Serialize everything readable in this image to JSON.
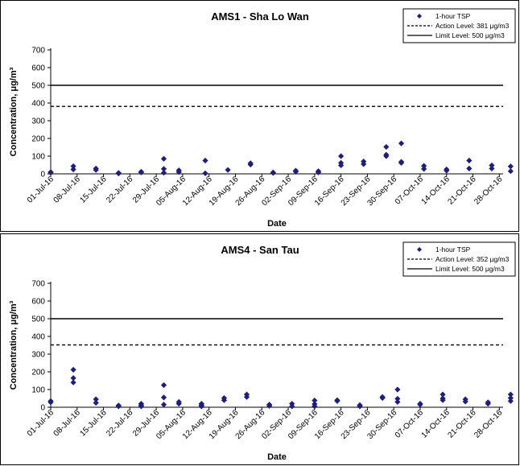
{
  "chart_data": [
    {
      "type": "scatter",
      "title": "AMS1 - Sha Lo Wan",
      "xlabel": "Date",
      "ylabel": "Concentration, μg/m³",
      "ylim": [
        0,
        700
      ],
      "yticks": [
        0,
        100,
        200,
        300,
        400,
        500,
        600,
        700
      ],
      "xticks": [
        "01-Jul-16",
        "08-Jul-16",
        "15-Jul-16",
        "22-Jul-16",
        "29-Jul-16",
        "05-Aug-16",
        "12-Aug-16",
        "19-Aug-16",
        "26-Aug-16",
        "02-Sep-16",
        "09-Sep-16",
        "16-Sep-16",
        "23-Sep-16",
        "30-Sep-16",
        "07-Oct-16",
        "14-Oct-16",
        "21-Oct-16",
        "28-Oct-16"
      ],
      "grid": false,
      "legend_position": "top-right",
      "legend": [
        "1-hour TSP",
        "Action Level: 381 μg/m3",
        "Limit Level: 500 μg/m3"
      ],
      "series": [
        {
          "name": "1-hour TSP",
          "marker": "diamond",
          "color": "#1f1f7a",
          "points": [
            {
              "date": "2016-07-01",
              "value": 10
            },
            {
              "date": "2016-07-01",
              "value": 6
            },
            {
              "date": "2016-07-07",
              "value": 43
            },
            {
              "date": "2016-07-07",
              "value": 25
            },
            {
              "date": "2016-07-13",
              "value": 30
            },
            {
              "date": "2016-07-13",
              "value": 22
            },
            {
              "date": "2016-07-19",
              "value": 5
            },
            {
              "date": "2016-07-19",
              "value": 2
            },
            {
              "date": "2016-07-25",
              "value": 12
            },
            {
              "date": "2016-07-25",
              "value": 8
            },
            {
              "date": "2016-07-31",
              "value": 85
            },
            {
              "date": "2016-07-31",
              "value": 28
            },
            {
              "date": "2016-07-31",
              "value": 6
            },
            {
              "date": "2016-08-04",
              "value": 20
            },
            {
              "date": "2016-08-04",
              "value": 10
            },
            {
              "date": "2016-08-11",
              "value": 75
            },
            {
              "date": "2016-08-11",
              "value": 3
            },
            {
              "date": "2016-08-17",
              "value": 22
            },
            {
              "date": "2016-08-23",
              "value": 60
            },
            {
              "date": "2016-08-23",
              "value": 52
            },
            {
              "date": "2016-08-29",
              "value": 8
            },
            {
              "date": "2016-08-29",
              "value": 5
            },
            {
              "date": "2016-09-04",
              "value": 18
            },
            {
              "date": "2016-09-04",
              "value": 12
            },
            {
              "date": "2016-09-10",
              "value": 15
            },
            {
              "date": "2016-09-10",
              "value": 8
            },
            {
              "date": "2016-09-16",
              "value": 100
            },
            {
              "date": "2016-09-16",
              "value": 62
            },
            {
              "date": "2016-09-16",
              "value": 48
            },
            {
              "date": "2016-09-22",
              "value": 70
            },
            {
              "date": "2016-09-22",
              "value": 55
            },
            {
              "date": "2016-09-28",
              "value": 152
            },
            {
              "date": "2016-09-28",
              "value": 108
            },
            {
              "date": "2016-09-28",
              "value": 100
            },
            {
              "date": "2016-10-02",
              "value": 172
            },
            {
              "date": "2016-10-02",
              "value": 68
            },
            {
              "date": "2016-10-02",
              "value": 62
            },
            {
              "date": "2016-10-08",
              "value": 45
            },
            {
              "date": "2016-10-08",
              "value": 28
            },
            {
              "date": "2016-10-14",
              "value": 25
            },
            {
              "date": "2016-10-14",
              "value": 18
            },
            {
              "date": "2016-10-20",
              "value": 75
            },
            {
              "date": "2016-10-20",
              "value": 30
            },
            {
              "date": "2016-10-26",
              "value": 48
            },
            {
              "date": "2016-10-26",
              "value": 30
            },
            {
              "date": "2016-10-31",
              "value": 42
            },
            {
              "date": "2016-10-31",
              "value": 15
            }
          ]
        }
      ],
      "reference_lines": [
        {
          "name": "Action Level: 381 μg/m3",
          "value": 381,
          "style": "dashed"
        },
        {
          "name": "Limit Level: 500 μg/m3",
          "value": 500,
          "style": "solid"
        }
      ]
    },
    {
      "type": "scatter",
      "title": "AMS4 - San Tau",
      "xlabel": "Date",
      "ylabel": "Concentration, μg/m³",
      "ylim": [
        0,
        700
      ],
      "yticks": [
        0,
        100,
        200,
        300,
        400,
        500,
        600,
        700
      ],
      "xticks": [
        "01-Jul-16",
        "08-Jul-16",
        "15-Jul-16",
        "22-Jul-16",
        "29-Jul-16",
        "05-Aug-16",
        "12-Aug-16",
        "19-Aug-16",
        "26-Aug-16",
        "02-Sep-16",
        "09-Sep-16",
        "16-Sep-16",
        "23-Sep-16",
        "30-Sep-16",
        "07-Oct-16",
        "14-Oct-16",
        "21-Oct-16",
        "28-Oct-16"
      ],
      "grid": false,
      "legend_position": "top-right",
      "legend": [
        "1-hour TSP",
        "Action Level: 352 μg/m3",
        "Limit Level: 500 μg/m3"
      ],
      "series": [
        {
          "name": "1-hour TSP",
          "marker": "diamond",
          "color": "#1f1f7a",
          "points": [
            {
              "date": "2016-07-01",
              "value": 35
            },
            {
              "date": "2016-07-01",
              "value": 28
            },
            {
              "date": "2016-07-07",
              "value": 212
            },
            {
              "date": "2016-07-07",
              "value": 165
            },
            {
              "date": "2016-07-07",
              "value": 140
            },
            {
              "date": "2016-07-13",
              "value": 45
            },
            {
              "date": "2016-07-13",
              "value": 25
            },
            {
              "date": "2016-07-19",
              "value": 10
            },
            {
              "date": "2016-07-19",
              "value": 5
            },
            {
              "date": "2016-07-25",
              "value": 20
            },
            {
              "date": "2016-07-25",
              "value": 12
            },
            {
              "date": "2016-07-25",
              "value": 5
            },
            {
              "date": "2016-07-31",
              "value": 125
            },
            {
              "date": "2016-07-31",
              "value": 55
            },
            {
              "date": "2016-07-31",
              "value": 15
            },
            {
              "date": "2016-08-04",
              "value": 30
            },
            {
              "date": "2016-08-04",
              "value": 20
            },
            {
              "date": "2016-08-10",
              "value": 20
            },
            {
              "date": "2016-08-10",
              "value": 12
            },
            {
              "date": "2016-08-10",
              "value": 5
            },
            {
              "date": "2016-08-16",
              "value": 52
            },
            {
              "date": "2016-08-16",
              "value": 40
            },
            {
              "date": "2016-08-22",
              "value": 72
            },
            {
              "date": "2016-08-22",
              "value": 58
            },
            {
              "date": "2016-08-28",
              "value": 15
            },
            {
              "date": "2016-08-28",
              "value": 8
            },
            {
              "date": "2016-09-03",
              "value": 20
            },
            {
              "date": "2016-09-03",
              "value": 5
            },
            {
              "date": "2016-09-09",
              "value": 38
            },
            {
              "date": "2016-09-09",
              "value": 18
            },
            {
              "date": "2016-09-09",
              "value": 5
            },
            {
              "date": "2016-09-15",
              "value": 40
            },
            {
              "date": "2016-09-15",
              "value": 35
            },
            {
              "date": "2016-09-21",
              "value": 12
            },
            {
              "date": "2016-09-21",
              "value": 5
            },
            {
              "date": "2016-09-27",
              "value": 58
            },
            {
              "date": "2016-09-27",
              "value": 52
            },
            {
              "date": "2016-10-01",
              "value": 100
            },
            {
              "date": "2016-10-01",
              "value": 48
            },
            {
              "date": "2016-10-01",
              "value": 30
            },
            {
              "date": "2016-10-07",
              "value": 20
            },
            {
              "date": "2016-10-07",
              "value": 15
            },
            {
              "date": "2016-10-13",
              "value": 72
            },
            {
              "date": "2016-10-13",
              "value": 50
            },
            {
              "date": "2016-10-13",
              "value": 40
            },
            {
              "date": "2016-10-19",
              "value": 45
            },
            {
              "date": "2016-10-19",
              "value": 32
            },
            {
              "date": "2016-10-25",
              "value": 28
            },
            {
              "date": "2016-10-25",
              "value": 20
            },
            {
              "date": "2016-10-31",
              "value": 72
            },
            {
              "date": "2016-10-31",
              "value": 52
            },
            {
              "date": "2016-10-31",
              "value": 35
            }
          ]
        }
      ],
      "reference_lines": [
        {
          "name": "Action Level: 352 μg/m3",
          "value": 352,
          "style": "dashed"
        },
        {
          "name": "Limit Level: 500 μg/m3",
          "value": 500,
          "style": "solid"
        }
      ]
    }
  ]
}
